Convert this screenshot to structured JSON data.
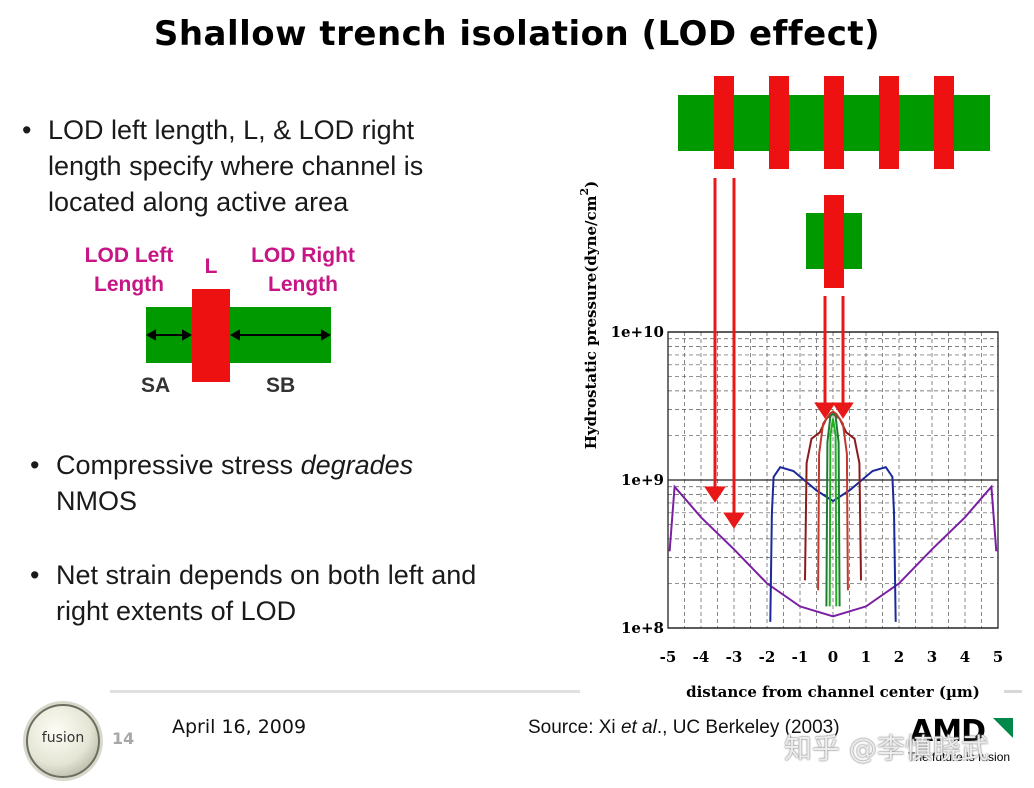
{
  "slide": {
    "title": "Shallow trench isolation (LOD effect)",
    "bullets": [
      {
        "text": "LOD left length, L, & LOD right length specify where channel is located along active area"
      },
      {
        "before": "Compressive stress ",
        "em": "degrades",
        "after": " NMOS"
      },
      {
        "text": "Net strain depends on both left and right extents of LOD"
      }
    ],
    "bullet_symbol": "•"
  },
  "diagram": {
    "lod_left_label": "LOD Left Length",
    "gate_label": "L",
    "lod_right_label": "LOD Right Length",
    "sa_label": "SA",
    "sb_label": "SB",
    "colors": {
      "active": "#009900",
      "gate": "#ee1111",
      "label": "#c71585",
      "arrow": "#e81818"
    }
  },
  "chart_data": {
    "type": "line",
    "title": "",
    "xlabel": "distance from channel center (µm)",
    "ylabel": "Hydrostatic pressure(dyne/cm",
    "ylabel_superscript": "2",
    "ylabel_close": ")",
    "x_ticks": [
      "-5",
      "-4",
      "-3",
      "-2",
      "-1",
      "0",
      "1",
      "2",
      "3",
      "4",
      "5"
    ],
    "y_ticks": [
      "1e+8",
      "1e+9",
      "1e+10"
    ],
    "xlim": [
      -5,
      5
    ],
    "ylim": [
      100000000,
      10000000000
    ],
    "yscale": "log",
    "grid": true,
    "series": [
      {
        "color": "#7a1fa2",
        "points": [
          [
            -4.95,
            330000000
          ],
          [
            -4.8,
            900000000
          ],
          [
            -4.6,
            800000000
          ],
          [
            -4,
            560000000
          ],
          [
            -3,
            340000000
          ],
          [
            -2,
            200000000
          ],
          [
            -1,
            140000000
          ],
          [
            0,
            120000000
          ],
          [
            1,
            140000000
          ],
          [
            2,
            200000000
          ],
          [
            3,
            340000000
          ],
          [
            4,
            560000000
          ],
          [
            4.6,
            800000000
          ],
          [
            4.8,
            900000000
          ],
          [
            4.95,
            330000000
          ]
        ]
      },
      {
        "color": "#1a2a9a",
        "points": [
          [
            -1.9,
            110000000
          ],
          [
            -1.85,
            600000000
          ],
          [
            -1.8,
            1050000000
          ],
          [
            -1.6,
            1220000000
          ],
          [
            -1.2,
            1150000000
          ],
          [
            -0.5,
            850000000
          ],
          [
            0,
            720000000
          ],
          [
            0.5,
            850000000
          ],
          [
            1.2,
            1150000000
          ],
          [
            1.6,
            1220000000
          ],
          [
            1.8,
            1050000000
          ],
          [
            1.85,
            600000000
          ],
          [
            1.9,
            110000000
          ]
        ]
      },
      {
        "color": "#8b1a1a",
        "points": [
          [
            -0.85,
            210000000
          ],
          [
            -0.8,
            1300000000
          ],
          [
            -0.65,
            1900000000
          ],
          [
            -0.4,
            2100000000
          ],
          [
            -0.2,
            2600000000
          ],
          [
            0,
            2800000000
          ],
          [
            0.2,
            2600000000
          ],
          [
            0.4,
            2100000000
          ],
          [
            0.65,
            1900000000
          ],
          [
            0.8,
            1300000000
          ],
          [
            0.85,
            210000000
          ]
        ]
      },
      {
        "color": "#c0392b",
        "points": [
          [
            -0.45,
            180000000
          ],
          [
            -0.42,
            1500000000
          ],
          [
            -0.3,
            2400000000
          ],
          [
            -0.1,
            2800000000
          ],
          [
            0,
            2900000000
          ],
          [
            0.1,
            2800000000
          ],
          [
            0.3,
            2400000000
          ],
          [
            0.42,
            1500000000
          ],
          [
            0.45,
            180000000
          ]
        ]
      },
      {
        "color": "#1e7d32",
        "points": [
          [
            -0.2,
            140000000
          ],
          [
            -0.17,
            1800000000
          ],
          [
            -0.08,
            2700000000
          ],
          [
            0,
            2800000000
          ],
          [
            0.08,
            2700000000
          ],
          [
            0.17,
            1800000000
          ],
          [
            0.2,
            140000000
          ]
        ]
      },
      {
        "color": "#20b020",
        "points": [
          [
            -0.1,
            140000000
          ],
          [
            -0.08,
            2000000000
          ],
          [
            0,
            2600000000
          ],
          [
            0.08,
            2000000000
          ],
          [
            0.1,
            140000000
          ]
        ]
      }
    ]
  },
  "footer": {
    "page_number": "14",
    "date": "April 16, 2009",
    "source_prefix": "Source: Xi ",
    "source_em": "et al",
    "source_suffix": "., UC Berkeley (2003)",
    "logo_text": "fusion",
    "brand": "AMD",
    "brand_tagline": "The future is fusion",
    "watermark": "知乎 @李慎晓武"
  }
}
